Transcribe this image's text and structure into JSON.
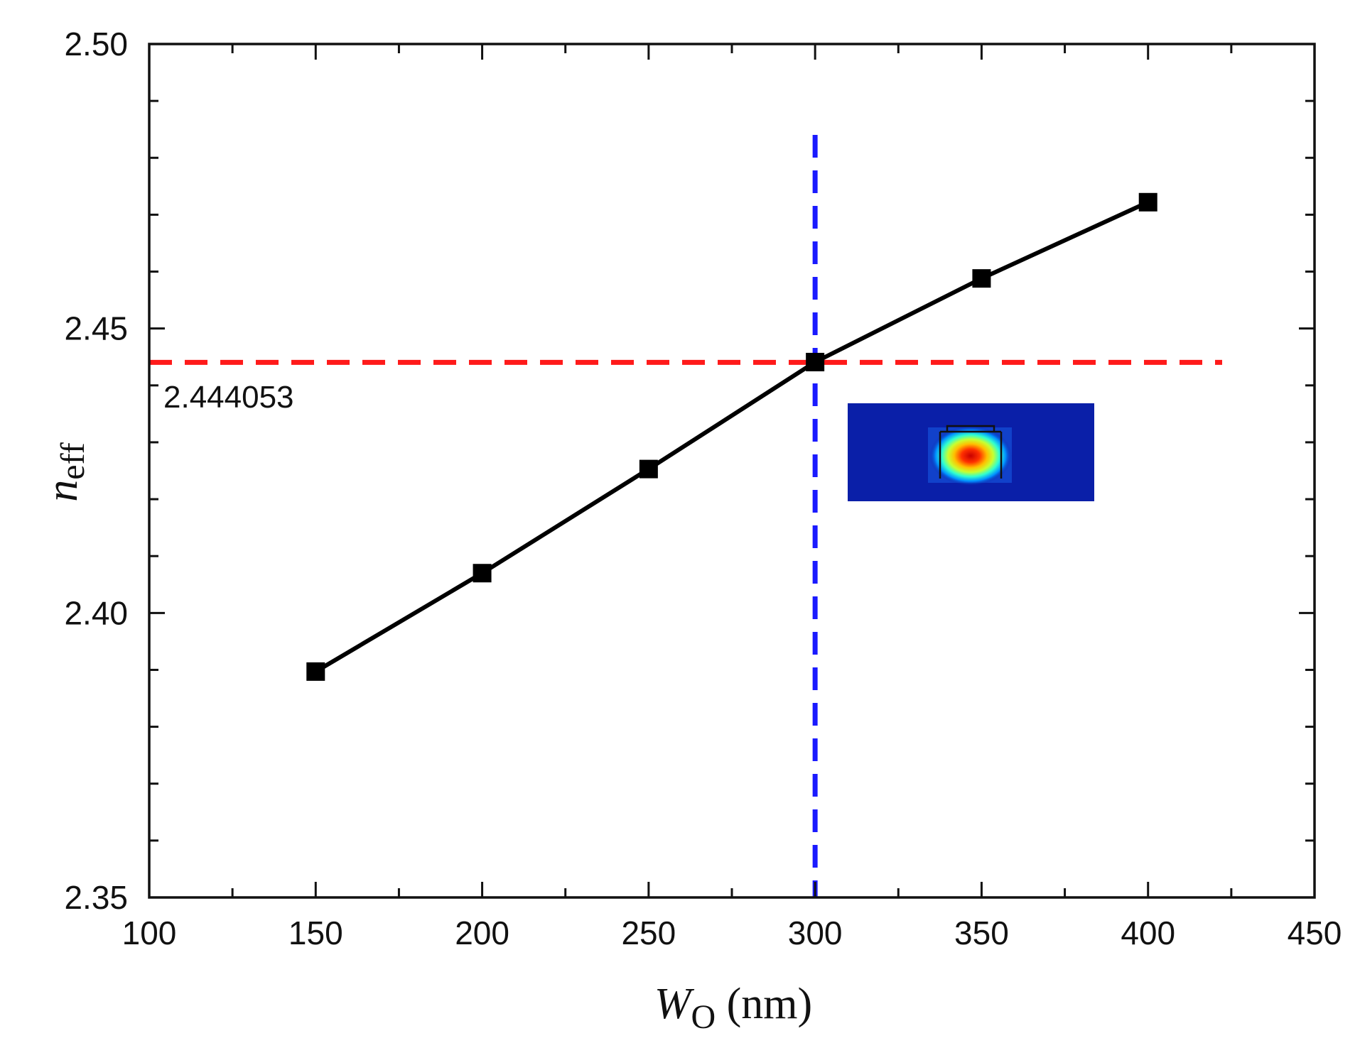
{
  "chart_data": {
    "type": "line",
    "xlabel": {
      "main": "W",
      "sub": "O",
      "units": " (nm)"
    },
    "ylabel": {
      "main": "n",
      "sub": "eff"
    },
    "xlim": [
      100,
      450
    ],
    "ylim": [
      2.35,
      2.5
    ],
    "x_ticks": [
      100,
      150,
      200,
      250,
      300,
      350,
      400,
      450
    ],
    "y_ticks": [
      2.35,
      2.4,
      2.45,
      2.5
    ],
    "x_tick_labels": [
      "100",
      "150",
      "200",
      "250",
      "300",
      "350",
      "400",
      "450"
    ],
    "y_tick_labels": [
      "2.35",
      "2.40",
      "2.45",
      "2.50"
    ],
    "x_minor_step": 25,
    "y_minor_step": 0.01,
    "grid": false,
    "series": [
      {
        "marker": "square",
        "color": "#000000",
        "x": [
          150,
          200,
          250,
          300,
          350,
          400
        ],
        "y": [
          2.3897,
          2.407,
          2.4253,
          2.4441,
          2.4588,
          2.4722
        ]
      }
    ],
    "reference_lines": [
      {
        "orientation": "horizontal",
        "value": 2.444053,
        "color": "#ff1a1a",
        "style": "dashed"
      },
      {
        "orientation": "vertical",
        "value": 300,
        "color": "#1a1aff",
        "style": "dashed"
      }
    ],
    "annotations": [
      {
        "text": "2.444053"
      }
    ],
    "inset": {
      "description_icon": "mode-profile-image",
      "colormap": "jet"
    }
  }
}
